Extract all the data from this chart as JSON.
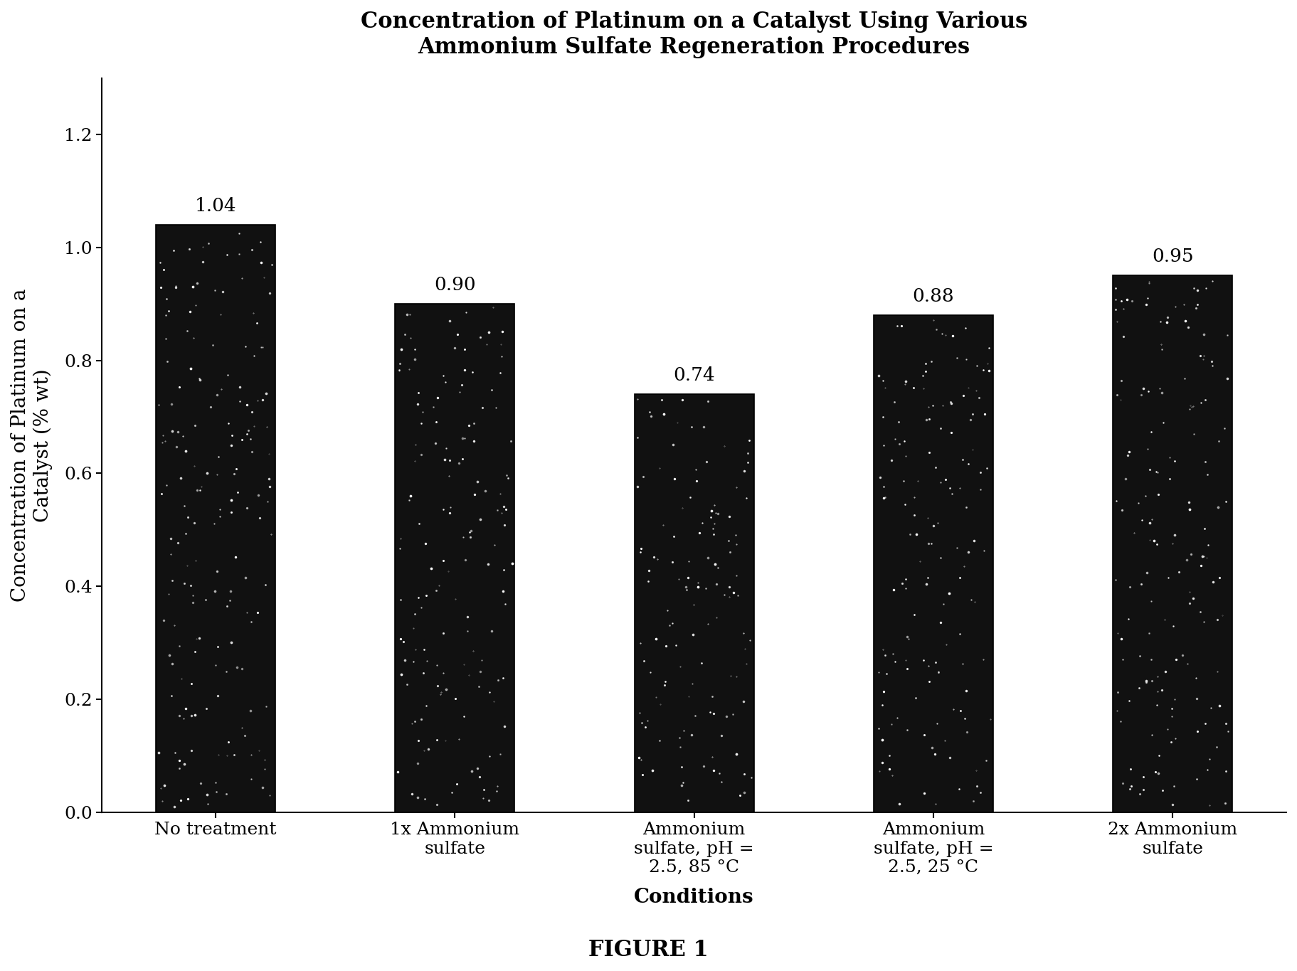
{
  "title": "Concentration of Platinum on a Catalyst Using Various\nAmmonium Sulfate Regeneration Procedures",
  "xlabel": "Conditions",
  "ylabel": "Concentration of Platinum on a\nCatalyst (% wt)",
  "categories": [
    "No treatment",
    "1x Ammonium\nsulfate",
    "Ammonium\nsulfate, pH =\n2.5, 85 °C",
    "Ammonium\nsulfate, pH =\n2.5, 25 °C",
    "2x Ammonium\nsulfate"
  ],
  "values": [
    1.04,
    0.9,
    0.74,
    0.88,
    0.95
  ],
  "bar_color": "#111111",
  "ylim": [
    0,
    1.3
  ],
  "yticks": [
    0,
    0.2,
    0.4,
    0.6,
    0.8,
    1.0,
    1.2
  ],
  "figure_caption": "FIGURE 1",
  "background_color": "#ffffff",
  "title_fontsize": 22,
  "label_fontsize": 20,
  "tick_fontsize": 18,
  "value_fontsize": 19,
  "caption_fontsize": 22,
  "noise_density": 0.06,
  "bar_width": 0.5
}
